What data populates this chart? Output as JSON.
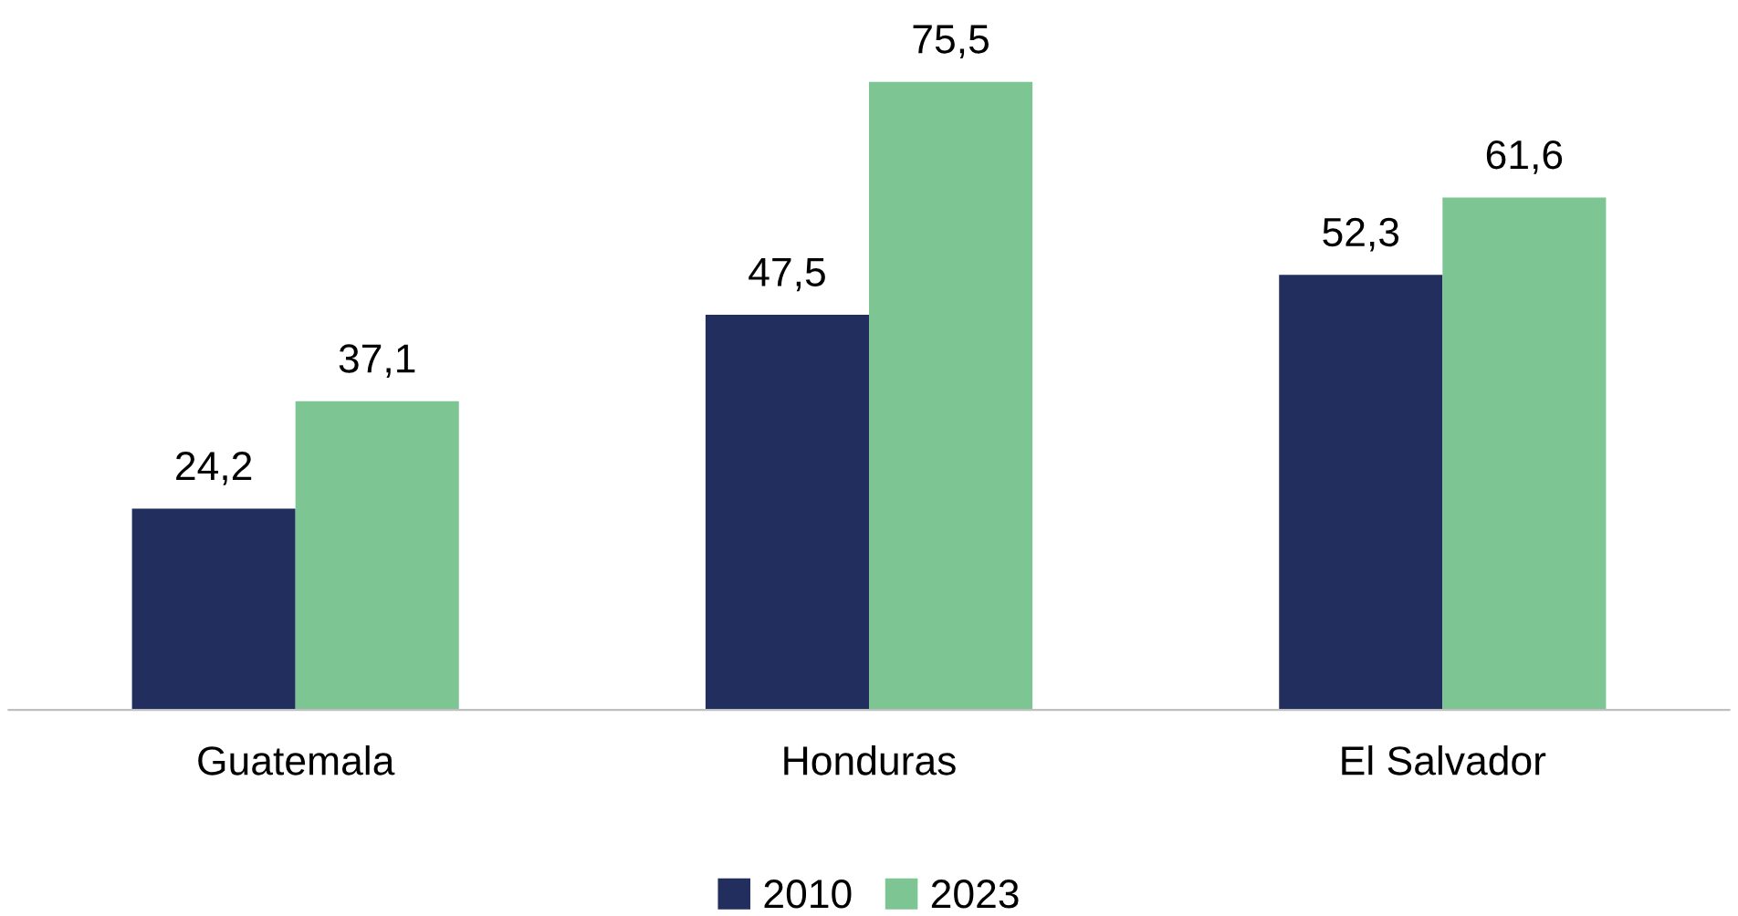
{
  "chart_data": {
    "type": "bar",
    "categories": [
      "Guatemala",
      "Honduras",
      "El Salvador"
    ],
    "series": [
      {
        "name": "2010",
        "color": "#222e5e",
        "values": [
          24.2,
          47.5,
          52.3
        ],
        "value_labels": [
          "24,2",
          "47,5",
          "52,3"
        ]
      },
      {
        "name": "2023",
        "color": "#7dc592",
        "values": [
          37.1,
          75.5,
          61.6
        ],
        "value_labels": [
          "37,1",
          "75,5",
          "61,6"
        ]
      }
    ],
    "legend": "bottom"
  }
}
